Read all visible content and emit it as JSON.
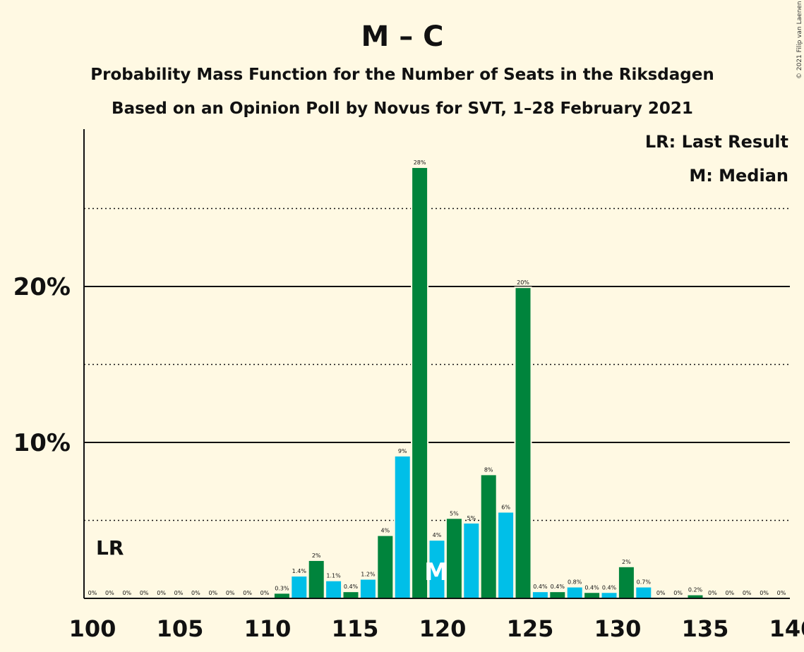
{
  "chart_data": {
    "type": "bar",
    "title": "M – C",
    "subtitle_1": "Probability Mass Function for the Number of Seats in the Riksdagen",
    "subtitle_2": "Based on an Opinion Poll by Novus for SVT, 1–28 February 2021",
    "copyright": "© 2021 Filip van Laenen",
    "legend": {
      "last_result": "LR: Last Result",
      "median": "M: Median",
      "placement": "top-right"
    },
    "lr_label": "LR",
    "median_label": "M",
    "last_result_seat": 101,
    "median_seat": 120,
    "xlim": [
      100,
      140
    ],
    "ylim": [
      0,
      30
    ],
    "x_ticks": [
      "100",
      "105",
      "110",
      "115",
      "120",
      "125",
      "130",
      "135",
      "140"
    ],
    "y_ticks": [
      "10%",
      "20%"
    ],
    "grid_solid": [
      10,
      20
    ],
    "grid_dotted": [
      5,
      15,
      25
    ],
    "colors": {
      "green": "#00843c",
      "blue": "#00bfe8",
      "background": "#fff9e3"
    },
    "bars": [
      {
        "seat": 101,
        "value": 0,
        "label": "0%",
        "color": "blue"
      },
      {
        "seat": 102,
        "value": 0,
        "label": "0%",
        "color": "green"
      },
      {
        "seat": 103,
        "value": 0,
        "label": "0%",
        "color": "blue"
      },
      {
        "seat": 104,
        "value": 0,
        "label": "0%",
        "color": "green"
      },
      {
        "seat": 105,
        "value": 0,
        "label": "0%",
        "color": "blue"
      },
      {
        "seat": 106,
        "value": 0,
        "label": "0%",
        "color": "green"
      },
      {
        "seat": 107,
        "value": 0,
        "label": "0%",
        "color": "blue"
      },
      {
        "seat": 108,
        "value": 0,
        "label": "0%",
        "color": "green"
      },
      {
        "seat": 109,
        "value": 0,
        "label": "0%",
        "color": "blue"
      },
      {
        "seat": 110,
        "value": 0,
        "label": "0%",
        "color": "green"
      },
      {
        "seat": 111,
        "value": 0,
        "label": "0%",
        "color": "blue"
      },
      {
        "seat": 112,
        "value": 0.3,
        "label": "0.3%",
        "color": "green"
      },
      {
        "seat": 113,
        "value": 1.4,
        "label": "1.4%",
        "color": "blue"
      },
      {
        "seat": 114,
        "value": 2.4,
        "label": "2%",
        "color": "green"
      },
      {
        "seat": 115,
        "value": 1.1,
        "label": "1.1%",
        "color": "blue"
      },
      {
        "seat": 116,
        "value": 0.4,
        "label": "0.4%",
        "color": "green"
      },
      {
        "seat": 117,
        "value": 1.2,
        "label": "1.2%",
        "color": "blue"
      },
      {
        "seat": 118,
        "value": 4.0,
        "label": "4%",
        "color": "green"
      },
      {
        "seat": 119,
        "value": 9.1,
        "label": "9%",
        "color": "blue"
      },
      {
        "seat": 120,
        "value": 27.6,
        "label": "28%",
        "color": "green"
      },
      {
        "seat": 121,
        "value": 3.7,
        "label": "4%",
        "color": "blue"
      },
      {
        "seat": 122,
        "value": 5.1,
        "label": "5%",
        "color": "green"
      },
      {
        "seat": 123,
        "value": 4.8,
        "label": "5%",
        "color": "blue"
      },
      {
        "seat": 124,
        "value": 7.9,
        "label": "8%",
        "color": "green"
      },
      {
        "seat": 125,
        "value": 5.5,
        "label": "6%",
        "color": "blue"
      },
      {
        "seat": 126,
        "value": 19.9,
        "label": "20%",
        "color": "green"
      },
      {
        "seat": 127,
        "value": 0.4,
        "label": "0.4%",
        "color": "blue"
      },
      {
        "seat": 128,
        "value": 0.4,
        "label": "0.4%",
        "color": "green"
      },
      {
        "seat": 129,
        "value": 0.7,
        "label": "0.8%",
        "color": "blue"
      },
      {
        "seat": 130,
        "value": 0.35,
        "label": "0.4%",
        "color": "green"
      },
      {
        "seat": 131,
        "value": 0.35,
        "label": "0.4%",
        "color": "blue"
      },
      {
        "seat": 132,
        "value": 2.0,
        "label": "2%",
        "color": "green"
      },
      {
        "seat": 133,
        "value": 0.7,
        "label": "0.7%",
        "color": "blue"
      },
      {
        "seat": 134,
        "value": 0,
        "label": "0%",
        "color": "green"
      },
      {
        "seat": 135,
        "value": 0,
        "label": "0%",
        "color": "blue"
      },
      {
        "seat": 136,
        "value": 0.2,
        "label": "0.2%",
        "color": "green"
      },
      {
        "seat": 137,
        "value": 0,
        "label": "0%",
        "color": "blue"
      },
      {
        "seat": 138,
        "value": 0,
        "label": "0%",
        "color": "green"
      },
      {
        "seat": 139,
        "value": 0,
        "label": "0%",
        "color": "blue"
      },
      {
        "seat": 140,
        "value": 0,
        "label": "0%",
        "color": "green"
      },
      {
        "seat": 141,
        "value": 0,
        "label": "0%",
        "color": "blue"
      }
    ]
  }
}
